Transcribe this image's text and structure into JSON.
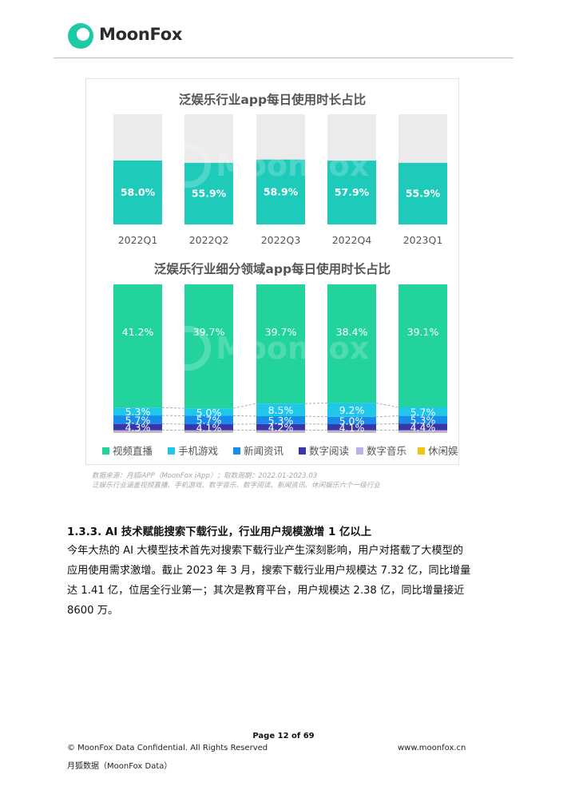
{
  "header": {
    "brand": "MoonFox",
    "brand_color": "#1ec9a6"
  },
  "figure": {
    "watermark": "MoonFox",
    "legend_colors": [
      "#22d39e",
      "#1fc7e9",
      "#178cea",
      "#3b36a8",
      "#b9b3ea",
      "#f4c20d"
    ],
    "source_line1": "数据来源：月狐iAPP（MoonFox iApp）；取数周期：2022.01-2023.03",
    "source_line2": "泛娱乐行业涵盖视频直播、手机游戏、数字音乐、数字阅读、新闻资讯、休闲娱乐六个一级行业"
  },
  "chart_data": [
    {
      "type": "bar",
      "title": "泛娱乐行业app每日使用时长占比",
      "categories": [
        "2022Q1",
        "2022Q2",
        "2022Q3",
        "2022Q4",
        "2023Q1"
      ],
      "values": [
        58.0,
        55.9,
        58.9,
        57.9,
        55.9
      ],
      "value_labels": [
        "58.0%",
        "55.9%",
        "58.9%",
        "57.9%",
        "55.9%"
      ],
      "ylim": [
        0,
        100
      ],
      "bar_color": "#1ecbba",
      "background_color": "#ebebeb"
    },
    {
      "type": "bar",
      "stacked": true,
      "title": "泛娱乐行业细分领域app每日使用时长占比",
      "categories": [
        "2022Q1",
        "2022Q2",
        "2022Q3",
        "2022Q4",
        "2023Q1"
      ],
      "series": [
        {
          "name": "视频直播",
          "color": "#22d39e",
          "values": [
            41.2,
            39.7,
            39.7,
            38.4,
            39.1
          ],
          "labels": [
            "41.2%",
            "39.7%",
            "39.7%",
            "38.4%",
            "39.1%"
          ]
        },
        {
          "name": "手机游戏",
          "color": "#1fc7e9",
          "values": [
            5.3,
            5.0,
            8.5,
            9.2,
            5.7
          ],
          "labels": [
            "5.3%",
            "5.0%",
            "8.5%",
            "9.2%",
            "5.7%"
          ]
        },
        {
          "name": "新闻资讯",
          "color": "#178cea",
          "values": [
            5.7,
            5.7,
            5.3,
            5.0,
            5.3
          ],
          "labels": [
            "5.7%",
            "5.7%",
            "5.3%",
            "5.0%",
            "5.3%"
          ]
        },
        {
          "name": "数字阅读",
          "color": "#3b36a8",
          "values": [
            4.3,
            4.1,
            4.2,
            4.1,
            4.4
          ],
          "labels": [
            "4.3%",
            "4.1%",
            "4.2%",
            "4.1%",
            "4.4%"
          ]
        },
        {
          "name": "数字音乐",
          "color": "#b9b3ea",
          "values": [
            1.5,
            1.5,
            1.5,
            1.5,
            1.5
          ],
          "labels": [
            "",
            "",
            "",
            "",
            ""
          ]
        },
        {
          "name": "休闲娱乐",
          "color": "#f4c20d",
          "values": [
            0.3,
            0.3,
            0.3,
            0.3,
            0.3
          ],
          "labels": [
            "",
            "",
            "",
            "",
            ""
          ]
        }
      ],
      "legend_position": "bottom"
    }
  ],
  "section": {
    "title": "1.3.3. AI 技术赋能搜索下载行业，行业用户规模激增 1 亿以上",
    "lines": [
      "今年大热的 AI 大模型技术首先对搜索下载行业产生深刻影响，用户对搭载了大模型的",
      "应用使用需求激增。截止 2023 年 3 月，搜索下载行业用户规模达 7.32 亿，同比增量",
      "达 1.41 亿，位居全行业第一；其次是教育平台，用户规模达 2.38 亿，同比增量接近",
      "8600 万。"
    ]
  },
  "footer": {
    "page": "Page  12 of 69",
    "copyright": "© MoonFox Data Confidential. All Rights Reserved",
    "url": "www.moonfox.cn",
    "company": "月狐数据（MoonFox Data）"
  }
}
